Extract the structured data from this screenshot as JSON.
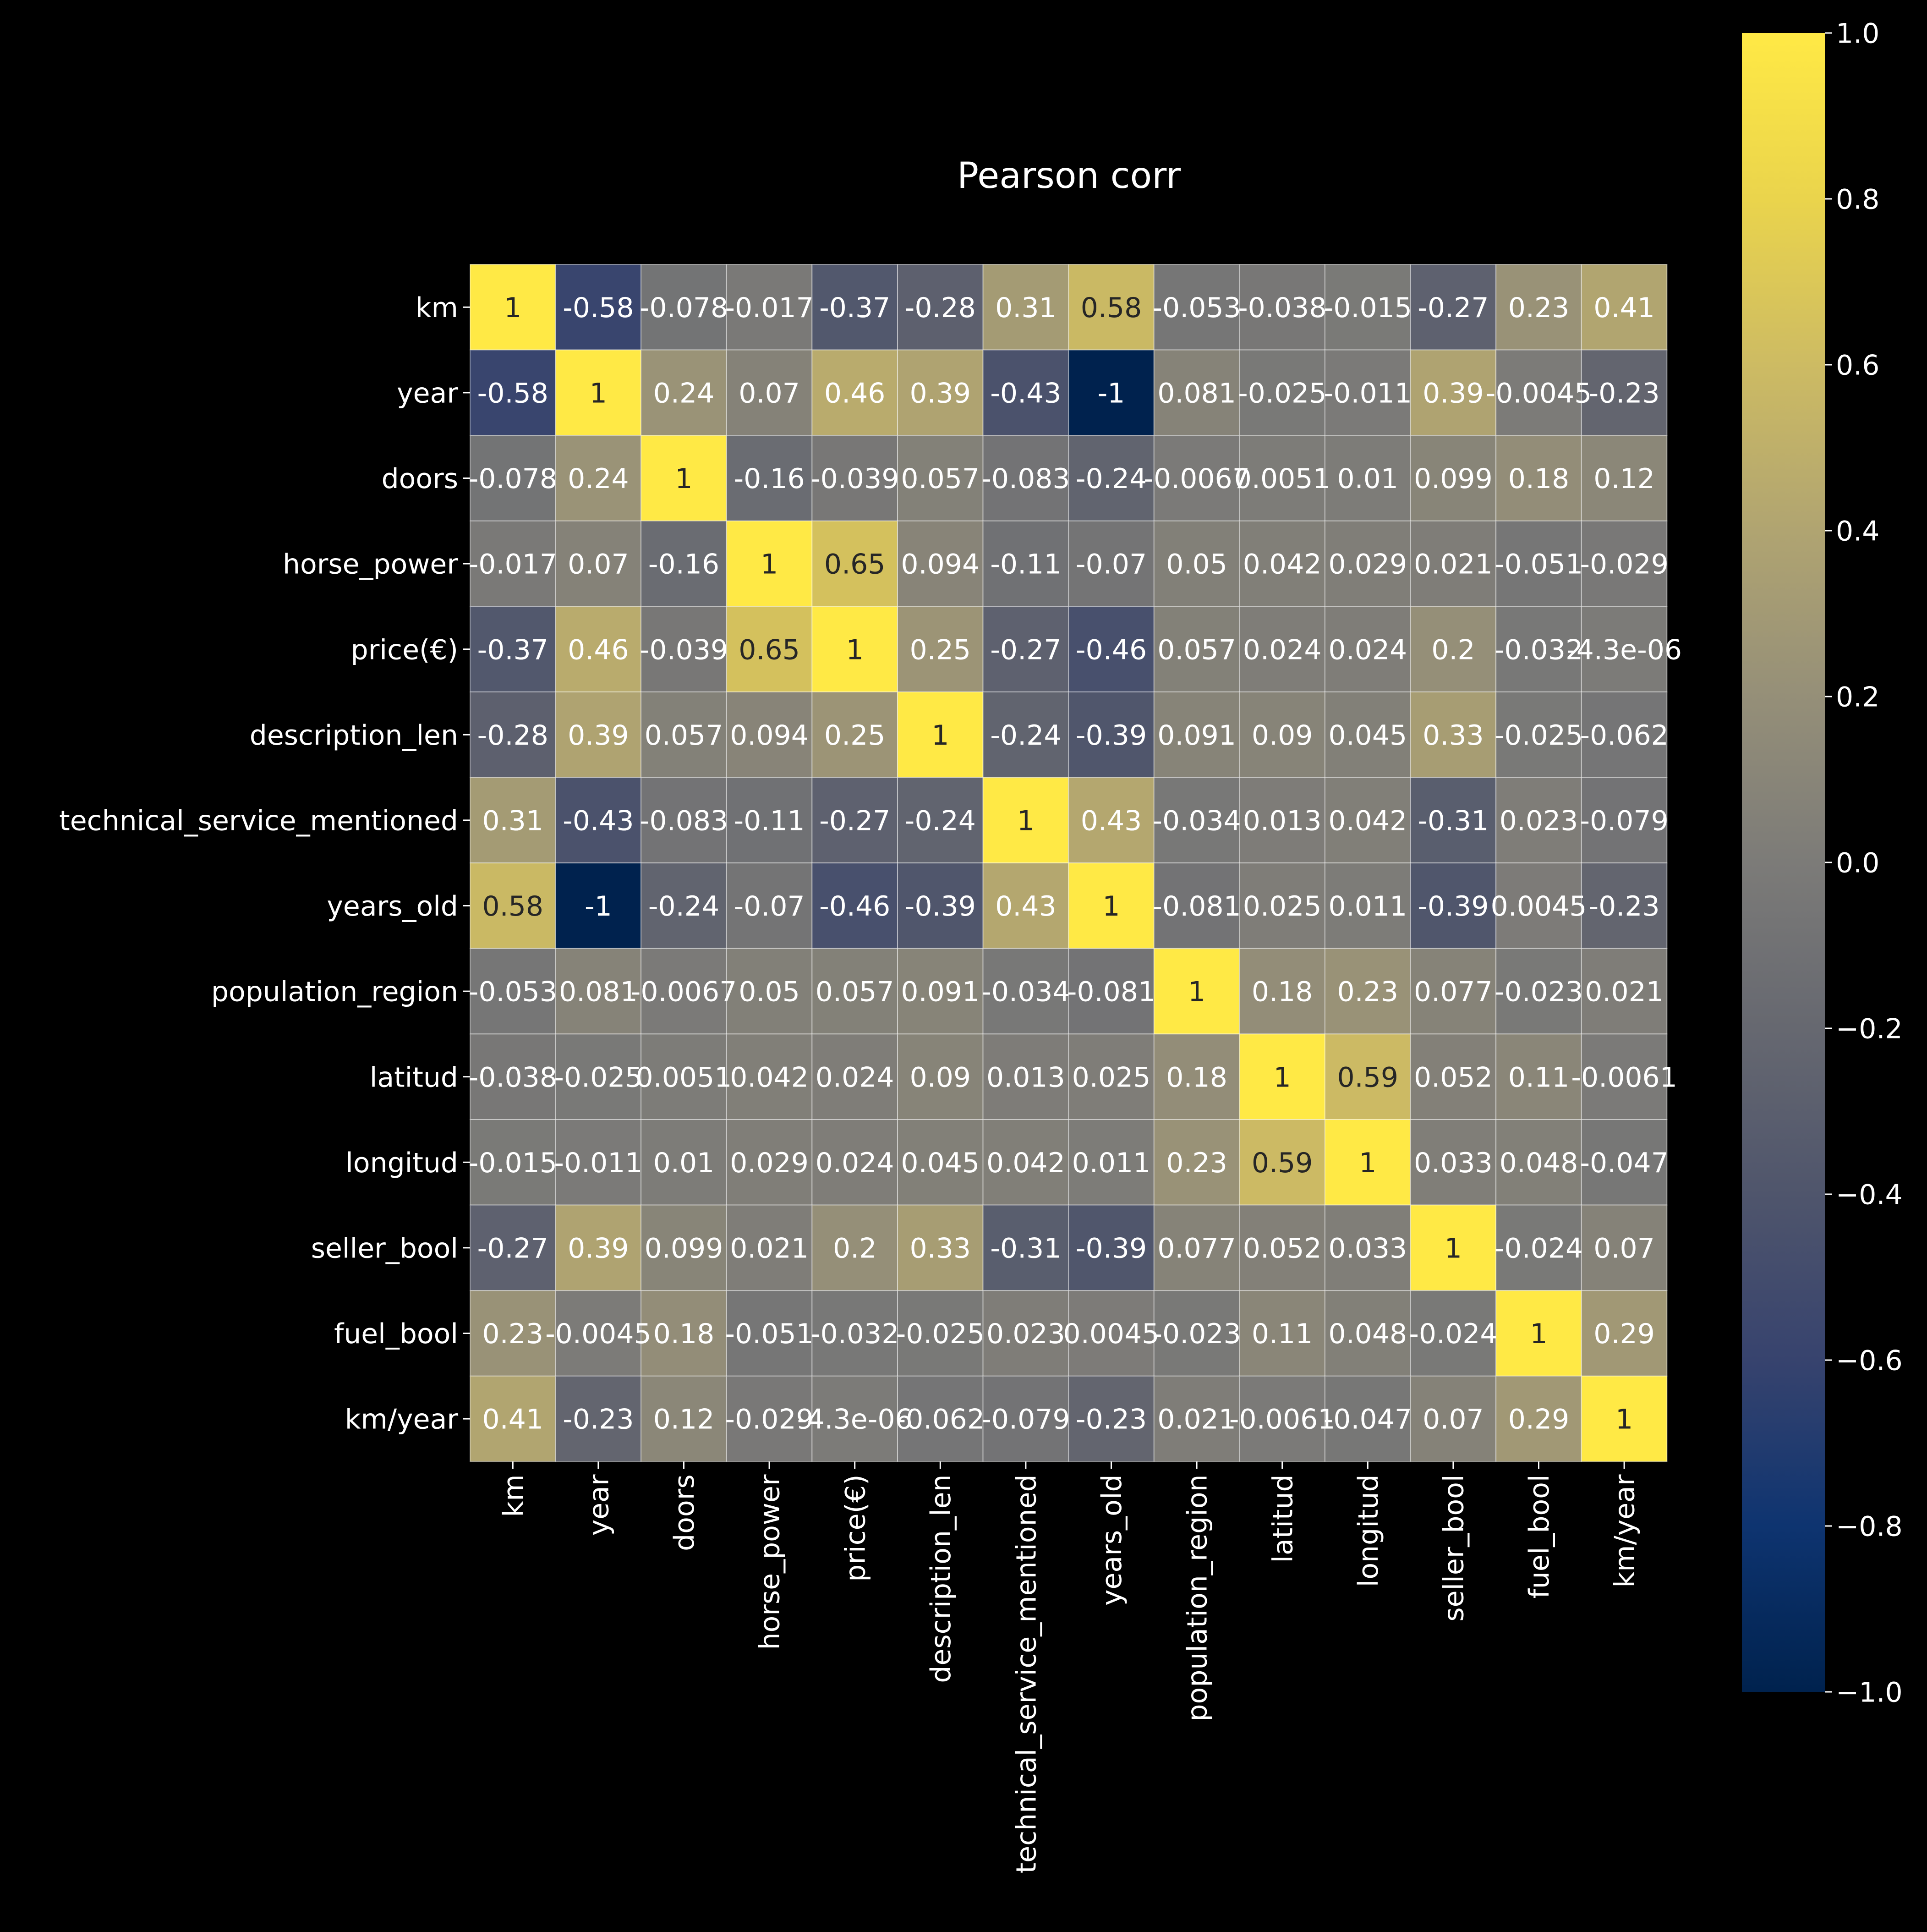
{
  "chart_data": {
    "type": "heatmap",
    "title": "Pearson corr",
    "xlabel": "",
    "ylabel": "",
    "colormap": "cividis",
    "value_range": [
      -1.0,
      1.0
    ],
    "labels": [
      "km",
      "year",
      "doors",
      "horse_power",
      "price(€)",
      "description_len",
      "technical_service_mentioned",
      "years_old",
      "population_region",
      "latitud",
      "longitud",
      "seller_bool",
      "fuel_bool",
      "km/year"
    ],
    "values": [
      [
        1,
        -0.58,
        -0.078,
        -0.017,
        -0.37,
        -0.28,
        0.31,
        0.58,
        -0.053,
        -0.038,
        -0.015,
        -0.27,
        0.23,
        0.41
      ],
      [
        -0.58,
        1,
        0.24,
        0.07,
        0.46,
        0.39,
        -0.43,
        -1,
        0.081,
        -0.025,
        -0.011,
        0.39,
        -0.0045,
        -0.23
      ],
      [
        -0.078,
        0.24,
        1,
        -0.16,
        -0.039,
        0.057,
        -0.083,
        -0.24,
        -0.0067,
        0.0051,
        0.01,
        0.099,
        0.18,
        0.12
      ],
      [
        -0.017,
        0.07,
        -0.16,
        1,
        0.65,
        0.094,
        -0.11,
        -0.07,
        0.05,
        0.042,
        0.029,
        0.021,
        -0.051,
        -0.029
      ],
      [
        -0.37,
        0.46,
        -0.039,
        0.65,
        1,
        0.25,
        -0.27,
        -0.46,
        0.057,
        0.024,
        0.024,
        0.2,
        -0.032,
        -4.3e-06
      ],
      [
        -0.28,
        0.39,
        0.057,
        0.094,
        0.25,
        1,
        -0.24,
        -0.39,
        0.091,
        0.09,
        0.045,
        0.33,
        -0.025,
        -0.062
      ],
      [
        0.31,
        -0.43,
        -0.083,
        -0.11,
        -0.27,
        -0.24,
        1,
        0.43,
        -0.034,
        0.013,
        0.042,
        -0.31,
        0.023,
        -0.079
      ],
      [
        0.58,
        -1,
        -0.24,
        -0.07,
        -0.46,
        -0.39,
        0.43,
        1,
        -0.081,
        0.025,
        0.011,
        -0.39,
        0.0045,
        -0.23
      ],
      [
        -0.053,
        0.081,
        -0.0067,
        0.05,
        0.057,
        0.091,
        -0.034,
        -0.081,
        1,
        0.18,
        0.23,
        0.077,
        -0.023,
        0.021
      ],
      [
        -0.038,
        -0.025,
        0.0051,
        0.042,
        0.024,
        0.09,
        0.013,
        0.025,
        0.18,
        1,
        0.59,
        0.052,
        0.11,
        -0.0061
      ],
      [
        -0.015,
        -0.011,
        0.01,
        0.029,
        0.024,
        0.045,
        0.042,
        0.011,
        0.23,
        0.59,
        1,
        0.033,
        0.048,
        -0.047
      ],
      [
        -0.27,
        0.39,
        0.099,
        0.021,
        0.2,
        0.33,
        -0.31,
        -0.39,
        0.077,
        0.052,
        0.033,
        1,
        -0.024,
        0.07
      ],
      [
        0.23,
        -0.0045,
        0.18,
        -0.051,
        -0.032,
        -0.025,
        0.023,
        0.0045,
        -0.023,
        0.11,
        0.048,
        -0.024,
        1,
        0.29
      ],
      [
        0.41,
        -0.23,
        0.12,
        -0.029,
        -4.3e-06,
        -0.062,
        -0.079,
        -0.23,
        0.021,
        -0.0061,
        -0.047,
        0.07,
        0.29,
        1
      ]
    ],
    "annotations": [
      [
        "1",
        "-0.58",
        "-0.078",
        "-0.017",
        "-0.37",
        "-0.28",
        "0.31",
        "0.58",
        "-0.053",
        "-0.038",
        "-0.015",
        "-0.27",
        "0.23",
        "0.41"
      ],
      [
        "-0.58",
        "1",
        "0.24",
        "0.07",
        "0.46",
        "0.39",
        "-0.43",
        "-1",
        "0.081",
        "-0.025",
        "-0.011",
        "0.39",
        "-0.0045",
        "-0.23"
      ],
      [
        "-0.078",
        "0.24",
        "1",
        "-0.16",
        "-0.039",
        "0.057",
        "-0.083",
        "-0.24",
        "-0.0067",
        "0.0051",
        "0.01",
        "0.099",
        "0.18",
        "0.12"
      ],
      [
        "-0.017",
        "0.07",
        "-0.16",
        "1",
        "0.65",
        "0.094",
        "-0.11",
        "-0.07",
        "0.05",
        "0.042",
        "0.029",
        "0.021",
        "-0.051",
        "-0.029"
      ],
      [
        "-0.37",
        "0.46",
        "-0.039",
        "0.65",
        "1",
        "0.25",
        "-0.27",
        "-0.46",
        "0.057",
        "0.024",
        "0.024",
        "0.2",
        "-0.032",
        "-4.3e-06"
      ],
      [
        "-0.28",
        "0.39",
        "0.057",
        "0.094",
        "0.25",
        "1",
        "-0.24",
        "-0.39",
        "0.091",
        "0.09",
        "0.045",
        "0.33",
        "-0.025",
        "-0.062"
      ],
      [
        "0.31",
        "-0.43",
        "-0.083",
        "-0.11",
        "-0.27",
        "-0.24",
        "1",
        "0.43",
        "-0.034",
        "0.013",
        "0.042",
        "-0.31",
        "0.023",
        "-0.079"
      ],
      [
        "0.58",
        "-1",
        "-0.24",
        "-0.07",
        "-0.46",
        "-0.39",
        "0.43",
        "1",
        "-0.081",
        "0.025",
        "0.011",
        "-0.39",
        "0.0045",
        "-0.23"
      ],
      [
        "-0.053",
        "0.081",
        "-0.0067",
        "0.05",
        "0.057",
        "0.091",
        "-0.034",
        "-0.081",
        "1",
        "0.18",
        "0.23",
        "0.077",
        "-0.023",
        "0.021"
      ],
      [
        "-0.038",
        "-0.025",
        "0.0051",
        "0.042",
        "0.024",
        "0.09",
        "0.013",
        "0.025",
        "0.18",
        "1",
        "0.59",
        "0.052",
        "0.11",
        "-0.0061"
      ],
      [
        "-0.015",
        "-0.011",
        "0.01",
        "0.029",
        "0.024",
        "0.045",
        "0.042",
        "0.011",
        "0.23",
        "0.59",
        "1",
        "0.033",
        "0.048",
        "-0.047"
      ],
      [
        "-0.27",
        "0.39",
        "0.099",
        "0.021",
        "0.2",
        "0.33",
        "-0.31",
        "-0.39",
        "0.077",
        "0.052",
        "0.033",
        "1",
        "-0.024",
        "0.07"
      ],
      [
        "0.23",
        "-0.0045",
        "0.18",
        "-0.051",
        "-0.032",
        "-0.025",
        "0.023",
        "0.0045",
        "-0.023",
        "0.11",
        "0.048",
        "-0.024",
        "1",
        "0.29"
      ],
      [
        "0.41",
        "-0.23",
        "0.12",
        "-0.029",
        "-4.3e-06",
        "-0.062",
        "-0.079",
        "-0.23",
        "0.021",
        "-0.0061",
        "-0.047",
        "0.07",
        "0.29",
        "1"
      ]
    ],
    "colorbar": {
      "ticks": [
        1.0,
        0.8,
        0.6,
        0.4,
        0.2,
        0.0,
        -0.2,
        -0.4,
        -0.6,
        -0.8,
        -1.0
      ],
      "tick_labels": [
        "1.0",
        "0.8",
        "0.6",
        "0.4",
        "0.2",
        "0.0",
        "−0.2",
        "−0.4",
        "−0.6",
        "−0.8",
        "−1.0"
      ]
    },
    "grid": true,
    "legend": "colorbar right"
  },
  "colors": {
    "background": "#000000",
    "text": "#ffffff",
    "cell_border": "#ffffff"
  }
}
